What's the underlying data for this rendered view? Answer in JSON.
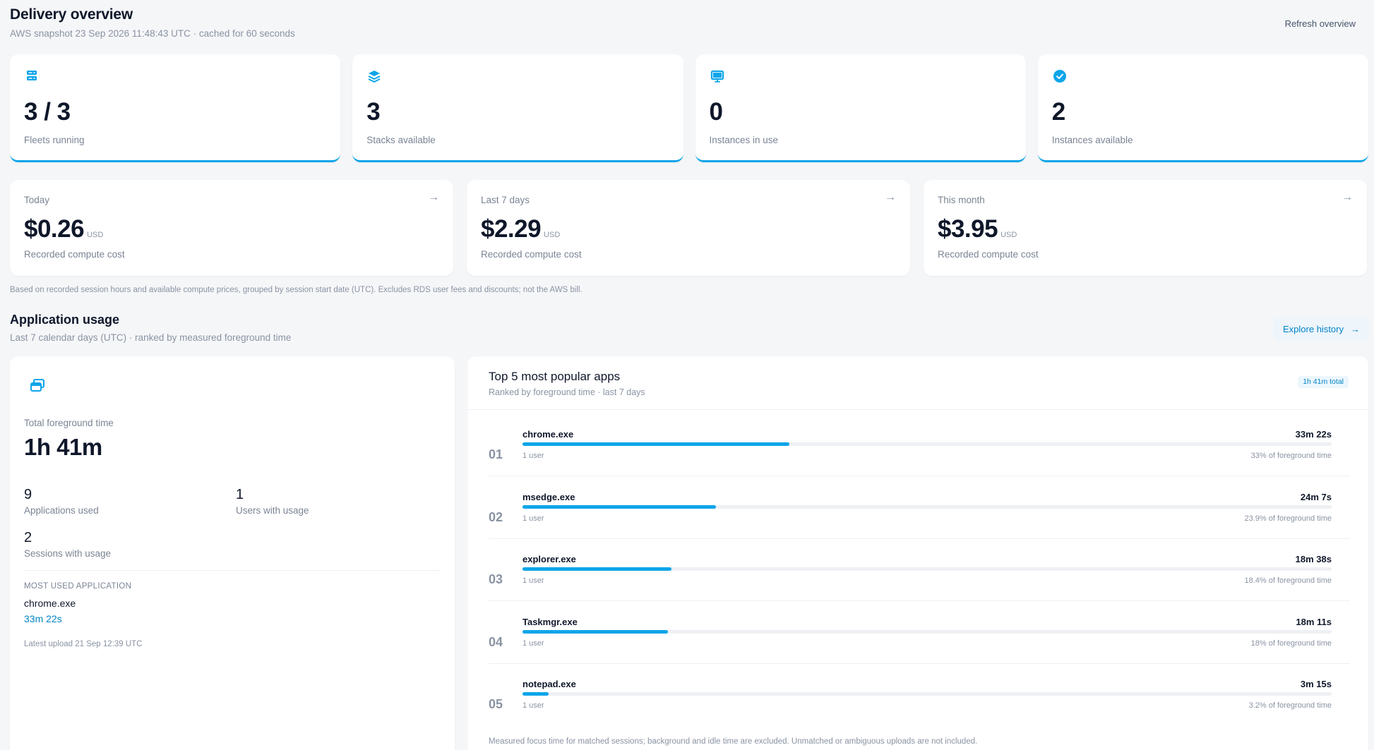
{
  "header": {
    "title": "Delivery overview",
    "subtitle": "AWS snapshot 23 Sep 2026 11:48:43 UTC · cached for 60 seconds",
    "refresh_label": "Refresh overview"
  },
  "stats": [
    {
      "icon": "server-icon",
      "value": "3 / 3",
      "label": "Fleets running"
    },
    {
      "icon": "layers-icon",
      "value": "3",
      "label": "Stacks available"
    },
    {
      "icon": "monitor-icon",
      "value": "0",
      "label": "Instances in use"
    },
    {
      "icon": "check-circle-icon",
      "value": "2",
      "label": "Instances available"
    }
  ],
  "costs": [
    {
      "period": "Today",
      "amount": "$0.26",
      "currency": "USD",
      "note": "Recorded compute cost"
    },
    {
      "period": "Last 7 days",
      "amount": "$2.29",
      "currency": "USD",
      "note": "Recorded compute cost"
    },
    {
      "period": "This month",
      "amount": "$3.95",
      "currency": "USD",
      "note": "Recorded compute cost"
    }
  ],
  "cost_disclaimer": "Based on recorded session hours and available compute prices, grouped by session start date (UTC). Excludes RDS user fees and discounts; not the AWS bill.",
  "app_usage": {
    "title": "Application usage",
    "subtitle": "Last 7 calendar days (UTC) · ranked by measured foreground time",
    "explore_label": "Explore history",
    "summary": {
      "total_label": "Total foreground time",
      "total_value": "1h 41m",
      "apps_used": {
        "value": "9",
        "label": "Applications used"
      },
      "users_with_usage": {
        "value": "1",
        "label": "Users with usage"
      },
      "sessions_with_usage": {
        "value": "2",
        "label": "Sessions with usage"
      },
      "most_used_label": "MOST USED APPLICATION",
      "most_used_name": "chrome.exe",
      "most_used_time": "33m 22s",
      "latest_upload": "Latest upload 21 Sep 12:39 UTC"
    },
    "top_apps": {
      "title": "Top 5 most popular apps",
      "subtitle": "Ranked by foreground time · last 7 days",
      "badge": "1h 41m total",
      "footnote": "Measured focus time for matched sessions; background and idle time are excluded. Unmatched or ambiguous uploads are not included.",
      "rows": [
        {
          "rank": "01",
          "name": "chrome.exe",
          "time": "33m 22s",
          "users": "1 user",
          "pct_label": "33% of foreground time",
          "pct": 33
        },
        {
          "rank": "02",
          "name": "msedge.exe",
          "time": "24m 7s",
          "users": "1 user",
          "pct_label": "23.9% of foreground time",
          "pct": 23.9
        },
        {
          "rank": "03",
          "name": "explorer.exe",
          "time": "18m 38s",
          "users": "1 user",
          "pct_label": "18.4% of foreground time",
          "pct": 18.4
        },
        {
          "rank": "04",
          "name": "Taskmgr.exe",
          "time": "18m 11s",
          "users": "1 user",
          "pct_label": "18% of foreground time",
          "pct": 18
        },
        {
          "rank": "05",
          "name": "notepad.exe",
          "time": "3m 15s",
          "users": "1 user",
          "pct_label": "3.2% of foreground time",
          "pct": 3.2
        }
      ]
    }
  },
  "colors": {
    "accent": "#0ea5e9",
    "link": "#0284c7",
    "background": "#f5f6f8"
  }
}
